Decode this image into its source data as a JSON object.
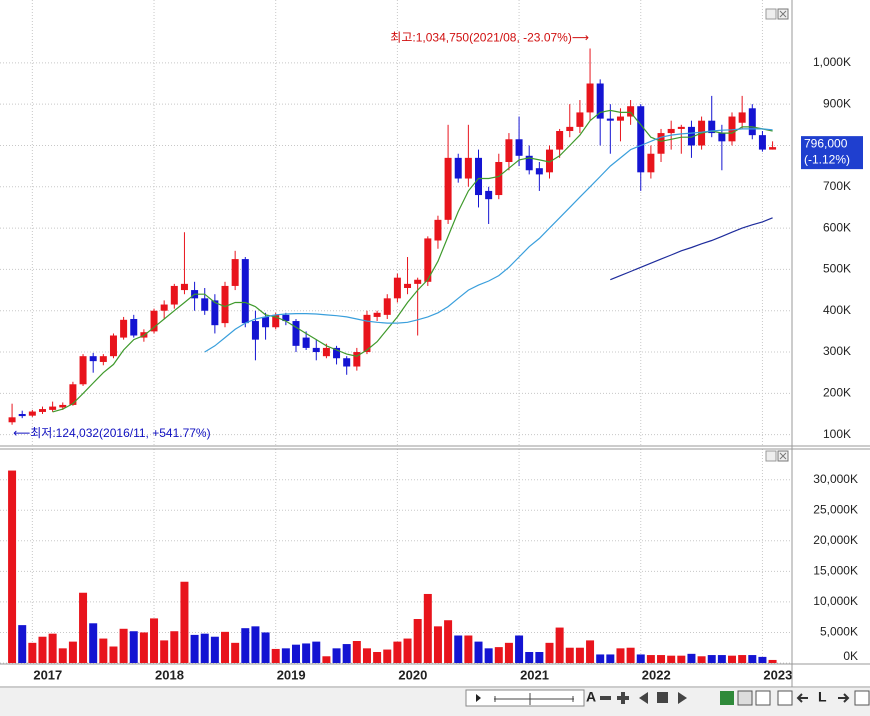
{
  "chart_data": [
    {
      "type": "candlestick",
      "open": [
        130000,
        150000,
        146000,
        155000,
        160000,
        166000,
        172000,
        222000,
        290000,
        276000,
        290000,
        335000,
        380000,
        335000,
        350000,
        400000,
        415000,
        450000,
        450000,
        430000,
        425000,
        370000,
        460000,
        525000,
        375000,
        385000,
        360000,
        390000,
        375000,
        335000,
        310000,
        290000,
        310000,
        285000,
        265000,
        300000,
        385000,
        390000,
        430000,
        455000,
        465000,
        470000,
        570000,
        620000,
        770000,
        720000,
        770000,
        690000,
        680000,
        760000,
        815000,
        775000,
        745000,
        735000,
        790000,
        835000,
        845000,
        880000,
        950000,
        865000,
        860000,
        870000,
        895000,
        735000,
        780000,
        830000,
        840000,
        845000,
        800000,
        860000,
        830000,
        810000,
        855000,
        890000,
        825000,
        790000
      ],
      "high": [
        175000,
        158000,
        160000,
        168000,
        180000,
        178000,
        228000,
        295000,
        298000,
        295000,
        345000,
        385000,
        390000,
        355000,
        405000,
        425000,
        465000,
        590000,
        470000,
        455000,
        440000,
        470000,
        545000,
        530000,
        400000,
        395000,
        395000,
        395000,
        380000,
        350000,
        330000,
        320000,
        315000,
        290000,
        310000,
        400000,
        400000,
        440000,
        490000,
        530000,
        480000,
        580000,
        630000,
        850000,
        780000,
        850000,
        790000,
        700000,
        780000,
        830000,
        870000,
        800000,
        760000,
        800000,
        840000,
        900000,
        910000,
        1034750,
        960000,
        900000,
        890000,
        910000,
        900000,
        800000,
        840000,
        860000,
        850000,
        860000,
        870000,
        920000,
        850000,
        880000,
        920000,
        900000,
        835000,
        810000
      ],
      "low": [
        124032,
        140000,
        143000,
        150000,
        155000,
        160000,
        170000,
        218000,
        250000,
        268000,
        285000,
        330000,
        335000,
        325000,
        345000,
        380000,
        405000,
        440000,
        400000,
        390000,
        345000,
        360000,
        450000,
        360000,
        280000,
        330000,
        355000,
        365000,
        300000,
        305000,
        280000,
        285000,
        270000,
        245000,
        255000,
        295000,
        375000,
        380000,
        420000,
        440000,
        340000,
        460000,
        550000,
        610000,
        710000,
        700000,
        650000,
        610000,
        670000,
        740000,
        750000,
        730000,
        690000,
        720000,
        770000,
        820000,
        830000,
        860000,
        800000,
        780000,
        810000,
        850000,
        690000,
        720000,
        760000,
        790000,
        780000,
        770000,
        790000,
        820000,
        740000,
        800000,
        840000,
        815000,
        785000,
        790000
      ],
      "close": [
        142000,
        145000,
        156000,
        162000,
        168000,
        172000,
        222000,
        290000,
        278000,
        290000,
        340000,
        378000,
        340000,
        348000,
        400000,
        415000,
        460000,
        465000,
        430000,
        400000,
        365000,
        460000,
        525000,
        370000,
        330000,
        360000,
        390000,
        375000,
        315000,
        310000,
        300000,
        310000,
        285000,
        265000,
        300000,
        390000,
        395000,
        430000,
        480000,
        465000,
        475000,
        575000,
        620000,
        770000,
        720000,
        770000,
        680000,
        670000,
        760000,
        815000,
        775000,
        740000,
        730000,
        790000,
        835000,
        845000,
        880000,
        950000,
        865000,
        860000,
        870000,
        895000,
        735000,
        780000,
        830000,
        840000,
        845000,
        800000,
        860000,
        830000,
        810000,
        870000,
        880000,
        825000,
        790000,
        796000
      ],
      "up_color": "#e8141c",
      "down_color": "#1414d2",
      "lines": [
        {
          "color": "#3f9a2c",
          "values": [
            null,
            null,
            null,
            null,
            155000,
            162000,
            175000,
            200000,
            225000,
            250000,
            270000,
            305000,
            330000,
            340000,
            360000,
            380000,
            400000,
            420000,
            440000,
            440000,
            420000,
            410000,
            420000,
            420000,
            410000,
            390000,
            385000,
            375000,
            360000,
            345000,
            330000,
            315000,
            305000,
            295000,
            290000,
            305000,
            325000,
            355000,
            385000,
            420000,
            450000,
            475000,
            520000,
            580000,
            640000,
            690000,
            720000,
            720000,
            725000,
            745000,
            765000,
            770000,
            765000,
            760000,
            775000,
            800000,
            825000,
            860000,
            880000,
            885000,
            880000,
            880000,
            850000,
            820000,
            810000,
            815000,
            820000,
            820000,
            830000,
            835000,
            830000,
            830000,
            845000,
            845000,
            840000,
            835000
          ]
        },
        {
          "color": "#3a9fdc",
          "values": [
            null,
            null,
            null,
            null,
            null,
            null,
            null,
            null,
            null,
            null,
            null,
            null,
            null,
            null,
            null,
            null,
            null,
            null,
            null,
            300000,
            315000,
            335000,
            355000,
            370000,
            380000,
            385000,
            390000,
            392000,
            393000,
            393000,
            392000,
            390000,
            388000,
            385000,
            380000,
            375000,
            372000,
            370000,
            370000,
            372000,
            378000,
            385000,
            395000,
            410000,
            430000,
            450000,
            462000,
            472000,
            485000,
            505000,
            530000,
            555000,
            575000,
            600000,
            625000,
            650000,
            675000,
            700000,
            725000,
            750000,
            770000,
            790000,
            800000,
            810000,
            820000,
            825000,
            828000,
            830000,
            832000,
            835000,
            837000,
            838000,
            840000,
            840000,
            840000,
            838000
          ]
        },
        {
          "color": "#1e2c9c",
          "values": [
            null,
            null,
            null,
            null,
            null,
            null,
            null,
            null,
            null,
            null,
            null,
            null,
            null,
            null,
            null,
            null,
            null,
            null,
            null,
            null,
            null,
            null,
            null,
            null,
            null,
            null,
            null,
            null,
            null,
            null,
            null,
            null,
            null,
            null,
            null,
            null,
            null,
            null,
            null,
            null,
            null,
            null,
            null,
            null,
            null,
            null,
            null,
            null,
            null,
            null,
            null,
            null,
            null,
            null,
            null,
            null,
            null,
            null,
            null,
            475000,
            485000,
            495000,
            505000,
            515000,
            525000,
            535000,
            545000,
            553000,
            562000,
            570000,
            580000,
            590000,
            600000,
            608000,
            615000,
            625000
          ]
        }
      ],
      "ylim": [
        75000,
        1140000
      ],
      "yticks": [
        {
          "value": 100000,
          "label": "100K"
        },
        {
          "value": 200000,
          "label": "200K"
        },
        {
          "value": 300000,
          "label": "300K"
        },
        {
          "value": 400000,
          "label": "400K"
        },
        {
          "value": 500000,
          "label": "500K"
        },
        {
          "value": 600000,
          "label": "600K"
        },
        {
          "value": 700000,
          "label": "700K"
        },
        {
          "value": 800000,
          "label": "800K"
        },
        {
          "value": 900000,
          "label": "900K"
        },
        {
          "value": 1000000,
          "label": "1,000K"
        }
      ],
      "grid": true,
      "high_label": "최고:1,034,750(2021/08, -23.07%)⟶",
      "low_label": "⟵최저:124,032(2016/11, +541.77%)",
      "price_label": [
        "796,000",
        "(-1.12%)"
      ]
    },
    {
      "type": "bar",
      "categories": [
        null,
        null,
        "2017",
        null,
        null,
        null,
        null,
        null,
        null,
        null,
        null,
        null,
        null,
        null,
        "2018",
        null,
        null,
        null,
        null,
        null,
        null,
        null,
        null,
        null,
        null,
        null,
        "2019",
        null,
        null,
        null,
        null,
        null,
        null,
        null,
        null,
        null,
        null,
        null,
        "2020",
        null,
        null,
        null,
        null,
        null,
        null,
        null,
        null,
        null,
        null,
        null,
        "2021",
        null,
        null,
        null,
        null,
        null,
        null,
        null,
        null,
        null,
        null,
        null,
        "2022",
        null,
        null,
        null,
        null,
        null,
        null,
        null,
        null,
        null,
        null,
        null,
        "2023",
        null
      ],
      "values": [
        31500000,
        6200000,
        3300000,
        4300000,
        4800000,
        2400000,
        3500000,
        11500000,
        6500000,
        4000000,
        2700000,
        5600000,
        5200000,
        5000000,
        7300000,
        3700000,
        5200000,
        13300000,
        4600000,
        4800000,
        4300000,
        5100000,
        3300000,
        5700000,
        6000000,
        5000000,
        2300000,
        2400000,
        3000000,
        3200000,
        3500000,
        1100000,
        2400000,
        3100000,
        3600000,
        2400000,
        1800000,
        2200000,
        3500000,
        4000000,
        7200000,
        11300000,
        6000000,
        7000000,
        4500000,
        4500000,
        3500000,
        2400000,
        2600000,
        3300000,
        4500000,
        1800000,
        1800000,
        3300000,
        5800000,
        2500000,
        2500000,
        3700000,
        1400000,
        1400000,
        2400000,
        2500000,
        1400000,
        1300000,
        1300000,
        1200000,
        1200000,
        1500000,
        1100000,
        1300000,
        1300000,
        1200000,
        1300000,
        1300000,
        1000000,
        500000
      ],
      "ylim": [
        0,
        34700000
      ],
      "yticks": [
        {
          "value": 0,
          "label": "0K"
        },
        {
          "value": 5000000,
          "label": "5,000K"
        },
        {
          "value": 10000000,
          "label": "10,000K"
        },
        {
          "value": 15000000,
          "label": "15,000K"
        },
        {
          "value": 20000000,
          "label": "20,000K"
        },
        {
          "value": 25000000,
          "label": "25,000K"
        },
        {
          "value": 30000000,
          "label": "30,000K"
        }
      ],
      "grid": true
    }
  ],
  "toolbar": {
    "labels": [
      "A",
      "L"
    ]
  }
}
